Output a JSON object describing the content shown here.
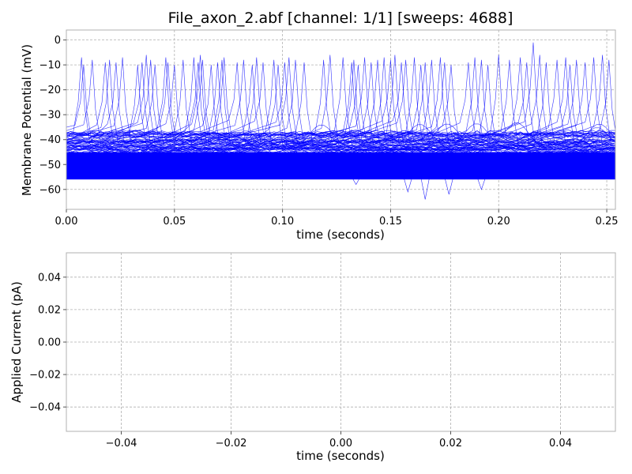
{
  "chart_data": [
    {
      "type": "line",
      "title": "File_axon_2.abf [channel: 1/1] [sweeps: 4688]",
      "xlabel": "time (seconds)",
      "ylabel": "Membrane Potential (mV)",
      "xlim": [
        0.0,
        0.254
      ],
      "ylim": [
        -68,
        4
      ],
      "xticks": [
        0.0,
        0.05,
        0.1,
        0.15,
        0.2,
        0.25
      ],
      "xtick_labels": [
        "0.00",
        "0.05",
        "0.10",
        "0.15",
        "0.20",
        "0.25"
      ],
      "yticks": [
        0,
        -10,
        -20,
        -30,
        -40,
        -50,
        -60
      ],
      "ytick_labels": [
        "0",
        "−10",
        "−20",
        "−30",
        "−40",
        "−50",
        "−60"
      ],
      "grid": true,
      "series_color": "#0000ff",
      "baseline_band": {
        "y_min": -56,
        "y_max": -45
      },
      "hyperpolarized_tail_y": -38,
      "spike_peak_times": [
        0.007,
        0.008,
        0.012,
        0.018,
        0.02,
        0.023,
        0.026,
        0.033,
        0.035,
        0.037,
        0.039,
        0.041,
        0.046,
        0.047,
        0.05,
        0.054,
        0.059,
        0.061,
        0.062,
        0.063,
        0.067,
        0.07,
        0.072,
        0.073,
        0.079,
        0.082,
        0.086,
        0.088,
        0.091,
        0.096,
        0.098,
        0.101,
        0.103,
        0.106,
        0.11,
        0.119,
        0.122,
        0.128,
        0.132,
        0.133,
        0.135,
        0.138,
        0.141,
        0.144,
        0.147,
        0.15,
        0.152,
        0.155,
        0.157,
        0.161,
        0.164,
        0.166,
        0.169,
        0.173,
        0.175,
        0.178,
        0.186,
        0.189,
        0.192,
        0.195,
        0.2,
        0.205,
        0.21,
        0.213,
        0.216,
        0.219,
        0.222,
        0.227,
        0.231,
        0.233,
        0.236,
        0.24,
        0.244,
        0.248,
        0.251
      ],
      "spike_peak_values": [
        -7,
        -10,
        -8,
        -9,
        -8,
        -9,
        -7,
        -10,
        -9,
        -6,
        -8,
        -10,
        -7,
        -9,
        -10,
        -8,
        -7,
        -9,
        -6,
        -8,
        -10,
        -9,
        -8,
        -7,
        -9,
        -8,
        -10,
        -7,
        -9,
        -8,
        -10,
        -9,
        -7,
        -8,
        -9,
        -8,
        -6,
        -7,
        -9,
        -8,
        -10,
        -7,
        -9,
        -8,
        -7,
        -8,
        -6,
        -9,
        -8,
        -7,
        -10,
        -9,
        -8,
        -7,
        -9,
        -10,
        -9,
        -7,
        -8,
        -10,
        -6,
        -8,
        -7,
        -9,
        -1,
        -6,
        -9,
        -8,
        -7,
        -10,
        -8,
        -9,
        -7,
        -6,
        -8
      ],
      "downward_deflections": [
        [
          0.134,
          -58
        ],
        [
          0.158,
          -61
        ],
        [
          0.166,
          -64
        ],
        [
          0.177,
          -62
        ],
        [
          0.192,
          -60
        ]
      ]
    },
    {
      "type": "line",
      "xlabel": "time (seconds)",
      "ylabel": "Applied Current (pA)",
      "xlim": [
        -0.05,
        0.05
      ],
      "ylim": [
        -0.055,
        0.055
      ],
      "xticks": [
        -0.04,
        -0.02,
        0.0,
        0.02,
        0.04
      ],
      "xtick_labels": [
        "−0.04",
        "−0.02",
        "0.00",
        "0.02",
        "0.04"
      ],
      "yticks": [
        0.04,
        0.02,
        0.0,
        -0.02,
        -0.04
      ],
      "ytick_labels": [
        "0.04",
        "0.02",
        "0.00",
        "−0.02",
        "−0.04"
      ],
      "grid": true,
      "series": []
    }
  ]
}
